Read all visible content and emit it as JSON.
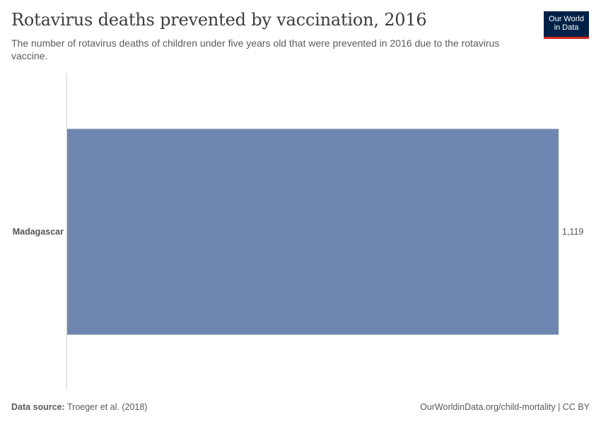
{
  "header": {
    "title": "Rotavirus deaths prevented by vaccination, 2016",
    "subtitle": "The number of rotavirus deaths of children under five years old that were prevented in 2016 due to the rotavirus vaccine."
  },
  "logo": {
    "line1": "Our World",
    "line2": "in Data"
  },
  "chart_data": {
    "type": "bar",
    "orientation": "horizontal",
    "categories": [
      "Madagascar"
    ],
    "values": [
      1119
    ],
    "value_labels": [
      "1,119"
    ],
    "title": "Rotavirus deaths prevented by vaccination, 2016",
    "xlim": [
      0,
      1119
    ],
    "bar_color": "#6f87b0"
  },
  "footer": {
    "source_label": "Data source:",
    "source_text": "Troeger et al. (2018)",
    "url_text": "OurWorldinData.org/child-mortality | CC BY"
  }
}
